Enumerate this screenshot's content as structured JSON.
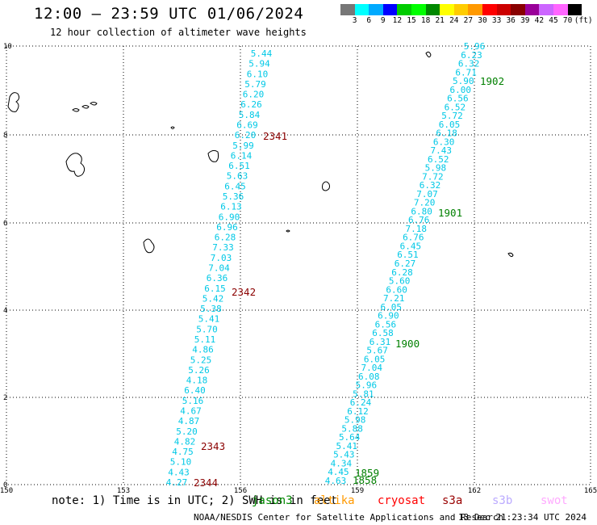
{
  "title": "12:00 – 23:59 UTC 01/06/2024",
  "subtitle": "12 hour collection of altimeter wave heights",
  "legend": {
    "colors": [
      "#777777",
      "#00ffff",
      "#00aaff",
      "#0000ff",
      "#00cc00",
      "#00ff00",
      "#008800",
      "#ffff00",
      "#ffcc00",
      "#ff9900",
      "#ff0000",
      "#cc0000",
      "#880000",
      "#990099",
      "#cc66ff",
      "#ff66ff",
      "#000000"
    ],
    "labels": [
      "3",
      "6",
      "9",
      "12",
      "15",
      "18",
      "21",
      "24",
      "27",
      "30",
      "33",
      "36",
      "39",
      "42",
      "45",
      "70",
      "(ft)"
    ]
  },
  "map": {
    "x_ticks": [
      "150",
      "153",
      "156",
      "159",
      "162",
      "165"
    ],
    "y_ticks": [
      "0",
      "2",
      "4",
      "6",
      "8",
      "10"
    ]
  },
  "tracks": [
    {
      "name": "jason3",
      "color": "#00c8e6",
      "values": [
        "5.44",
        "5.94",
        "6.10",
        "5.79",
        "6.20",
        "6.26",
        "5.84",
        "6.69",
        "6.20",
        "5.99",
        "6.14",
        "6.51",
        "5.63",
        "6.45",
        "5.36",
        "6.13",
        "6.90",
        "6.96",
        "6.28",
        "7.33",
        "7.03",
        "7.04",
        "6.36",
        "6.15",
        "5.42",
        "5.38",
        "5.41",
        "5.70",
        "5.11",
        "4.86",
        "5.25",
        "5.26",
        "4.18",
        "6.40",
        "5.16",
        "4.67",
        "4.87",
        "5.20",
        "4.82",
        "4.75",
        "5.10",
        "4.43",
        "4.27"
      ],
      "time_labels": [
        "2341",
        "2342",
        "2343",
        "2344"
      ]
    },
    {
      "name": "altika",
      "color": "#00c8e6",
      "values": [
        "5.96",
        "6.23",
        "6.32",
        "6.71",
        "5.90",
        "6.00",
        "6.56",
        "6.52",
        "5.72",
        "6.05",
        "6.18",
        "6.30",
        "7.43",
        "6.52",
        "5.98",
        "7.72",
        "6.32",
        "7.07",
        "7.20",
        "6.80",
        "6.76",
        "7.18",
        "6.76",
        "6.45",
        "6.51",
        "6.27",
        "6.28",
        "5.60",
        "6.60",
        "7.21",
        "6.05",
        "6.90",
        "6.56",
        "6.58",
        "6.31",
        "5.67",
        "6.05",
        "7.04",
        "6.08",
        "5.96",
        "5.81",
        "6.24",
        "6.12",
        "5.98",
        "5.88",
        "5.64",
        "5.41",
        "5.43",
        "4.34",
        "4.45",
        "4.63"
      ],
      "time_labels": [
        "1902",
        "1901",
        "1900",
        "1859",
        "1858"
      ]
    }
  ],
  "footer": {
    "note": "note:  1) Time is in UTC; 2) SWH is in feet",
    "satellites": [
      {
        "label": "jason3",
        "color": "#008800"
      },
      {
        "label": "altika",
        "color": "#ff9900"
      },
      {
        "label": "cryosat",
        "color": "#ff0000"
      },
      {
        "label": "s3a",
        "color": "#990000"
      },
      {
        "label": "s3b",
        "color": "#bbaaff"
      },
      {
        "label": "swot",
        "color": "#ffaaff"
      }
    ],
    "credit": "NOAA/NESDIS Center for Satellite Applications and Research",
    "timestamp": "13 Dec 21:23:34 UTC 2024"
  }
}
